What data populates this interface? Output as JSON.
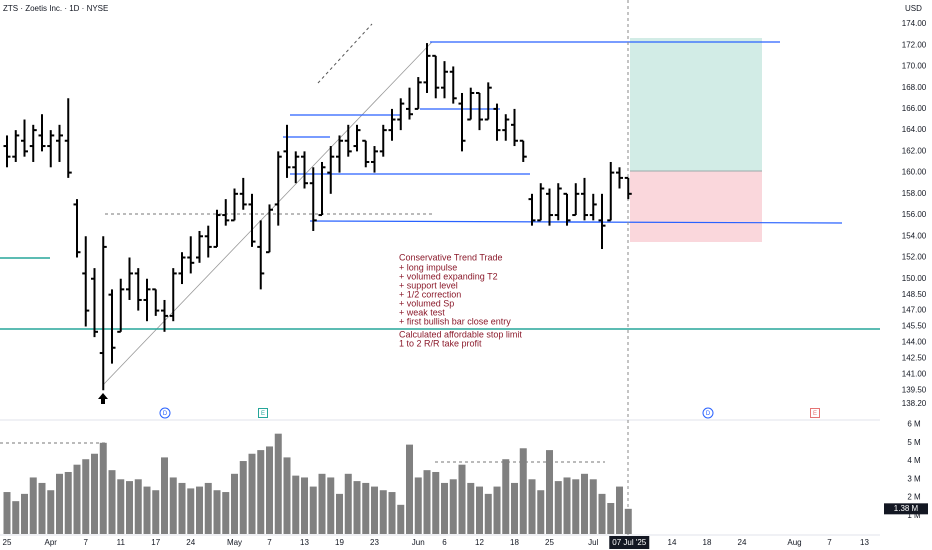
{
  "header": "ZTS · Zoetis Inc. · 1D · NYSE",
  "currency": "USD",
  "chart_data": {
    "type": "ohlc",
    "open": [
      162.5,
      161.5,
      163,
      162.5,
      163.5,
      162.5,
      163,
      163,
      157,
      150.5,
      150,
      143,
      148.5,
      145,
      149,
      150.5,
      148,
      149,
      147,
      146.5,
      150.5,
      152,
      152,
      154,
      153,
      156,
      155.5,
      158,
      157,
      153,
      152.5,
      157,
      162,
      160.5,
      161.5,
      159,
      156,
      160,
      161.5,
      163,
      162.5,
      163,
      161,
      162,
      164,
      165,
      166,
      166,
      168.5,
      171,
      168,
      169.5,
      166.5,
      165,
      167.5,
      165,
      166,
      164,
      164.5,
      163,
      157.5,
      155.5,
      158,
      156,
      158,
      156,
      158,
      156,
      155.5,
      155.5,
      160,
      159.5
    ],
    "high": [
      163.5,
      164,
      165,
      164.5,
      165.5,
      164,
      164.5,
      167,
      157.5,
      154,
      151,
      154,
      149,
      150,
      152,
      151,
      150,
      149,
      148,
      151,
      152.5,
      154,
      154.5,
      155,
      156.5,
      157.5,
      158.5,
      159.5,
      158,
      155.5,
      157,
      162,
      164.5,
      162,
      162,
      160.5,
      161,
      162.5,
      163.5,
      164.5,
      164.5,
      163,
      162.5,
      164.5,
      166,
      167,
      168,
      169,
      172.2,
      171,
      170.5,
      170,
      167.5,
      168,
      167.5,
      168.5,
      166.5,
      165.5,
      166,
      163,
      158,
      159,
      158.5,
      159,
      158,
      159,
      159.5,
      158,
      158,
      161,
      160.5,
      159.5
    ],
    "low": [
      160.5,
      161,
      161.5,
      161,
      162,
      160.5,
      161,
      159.5,
      152,
      145.5,
      144.5,
      139.5,
      142,
      145,
      148,
      147,
      146,
      146.5,
      145,
      146,
      149.5,
      150.5,
      151.5,
      152,
      153,
      155,
      155.5,
      156.5,
      153,
      149,
      152.5,
      155,
      159.5,
      159,
      158.5,
      154.5,
      156,
      158,
      160,
      161.5,
      162,
      160.5,
      160,
      161.5,
      163,
      164,
      165,
      166,
      167.5,
      167,
      167,
      166.5,
      162,
      165,
      164,
      165,
      163,
      163,
      162.5,
      161,
      155,
      155.5,
      155,
      155.5,
      155,
      156,
      155.5,
      155.5,
      152.8,
      155.5,
      158.5,
      157.5
    ],
    "close": [
      161.5,
      163.5,
      162,
      164,
      162.5,
      163.5,
      163.5,
      160,
      152.5,
      147,
      145,
      153,
      143.5,
      149,
      150.5,
      148,
      149,
      147,
      146.5,
      150.5,
      152,
      151.5,
      154,
      153,
      156,
      155.5,
      158,
      157,
      153.5,
      150.5,
      156.5,
      161.5,
      160.5,
      161.5,
      159,
      155.5,
      160.5,
      161.5,
      163,
      162,
      164,
      161,
      162,
      164,
      165,
      166.5,
      165.5,
      168.5,
      171,
      168,
      169.5,
      167,
      163,
      167.5,
      165,
      168,
      164,
      165,
      163,
      161.5,
      155.5,
      158.5,
      156,
      158.5,
      155.5,
      158,
      156,
      157,
      155,
      160,
      159.5,
      158
    ],
    "volume": [
      2.3,
      1.8,
      2.2,
      3.1,
      2.8,
      2.4,
      3.3,
      3.4,
      3.8,
      4.1,
      4.4,
      5.0,
      3.5,
      3.0,
      2.9,
      3.0,
      2.6,
      2.4,
      4.2,
      3.1,
      2.8,
      2.5,
      2.6,
      2.8,
      2.4,
      2.3,
      3.3,
      4.0,
      4.4,
      4.6,
      4.8,
      5.5,
      4.2,
      3.2,
      3.1,
      2.6,
      3.3,
      3.1,
      2.2,
      3.3,
      2.9,
      2.8,
      2.6,
      2.4,
      2.3,
      1.6,
      4.9,
      3.1,
      3.5,
      3.4,
      2.8,
      3.0,
      3.8,
      2.8,
      2.6,
      2.2,
      2.6,
      4.1,
      2.8,
      4.7,
      3.0,
      2.4,
      4.6,
      2.9,
      3.1,
      3.0,
      3.3,
      3.0,
      2.2,
      1.7,
      2.6,
      1.38
    ],
    "volume_last_label": "1.38 M",
    "bar_color": "#000000",
    "volume_color": "#808080",
    "ylim": [
      136.88,
      176.26
    ],
    "yticks": [
      {
        "value": 174,
        "label": "174.00"
      },
      {
        "value": 172,
        "label": "172.00"
      },
      {
        "value": 170,
        "label": "170.00"
      },
      {
        "value": 168,
        "label": "168.00"
      },
      {
        "value": 166,
        "label": "166.00"
      },
      {
        "value": 164,
        "label": "164.00"
      },
      {
        "value": 162,
        "label": "162.00"
      },
      {
        "value": 160,
        "label": "160.00"
      },
      {
        "value": 158,
        "label": "158.00"
      },
      {
        "value": 156,
        "label": "156.00"
      },
      {
        "value": 154,
        "label": "154.00"
      },
      {
        "value": 152,
        "label": "152.00"
      },
      {
        "value": 150,
        "label": "150.00"
      },
      {
        "value": 148.5,
        "label": "148.50"
      },
      {
        "value": 147,
        "label": "147.00"
      },
      {
        "value": 145.5,
        "label": "145.50"
      },
      {
        "value": 144,
        "label": "144.00"
      },
      {
        "value": 142.5,
        "label": "142.50"
      },
      {
        "value": 141,
        "label": "141.00"
      },
      {
        "value": 139.5,
        "label": "139.50"
      },
      {
        "value": 138.2,
        "label": "138.20"
      }
    ],
    "y2lim": [
      0,
      6.25
    ],
    "y2ticks": [
      {
        "value": 6,
        "label": "6 M"
      },
      {
        "value": 5,
        "label": "5 M"
      },
      {
        "value": 4,
        "label": "4 M"
      },
      {
        "value": 3,
        "label": "3 M"
      },
      {
        "value": 2,
        "label": "2 M"
      },
      {
        "value": 1,
        "label": "1 M"
      }
    ],
    "xlim": [
      -0.8,
      99.77
    ],
    "xticks": [
      {
        "value": 0,
        "label": "25"
      },
      {
        "value": 5,
        "label": "Apr"
      },
      {
        "value": 9,
        "label": "7"
      },
      {
        "value": 13,
        "label": "11"
      },
      {
        "value": 17,
        "label": "17"
      },
      {
        "value": 21,
        "label": "24"
      },
      {
        "value": 26,
        "label": "May"
      },
      {
        "value": 30,
        "label": "7"
      },
      {
        "value": 34,
        "label": "13"
      },
      {
        "value": 38,
        "label": "19"
      },
      {
        "value": 42,
        "label": "23"
      },
      {
        "value": 47,
        "label": "Jun"
      },
      {
        "value": 50,
        "label": "6"
      },
      {
        "value": 54,
        "label": "12"
      },
      {
        "value": 58,
        "label": "18"
      },
      {
        "value": 62,
        "label": "25"
      },
      {
        "value": 67,
        "label": "Jul"
      },
      {
        "value": 76,
        "label": "14"
      },
      {
        "value": 80,
        "label": "18"
      },
      {
        "value": 84,
        "label": "24"
      },
      {
        "value": 90,
        "label": "Aug"
      },
      {
        "value": 94,
        "label": "7"
      },
      {
        "value": 98,
        "label": "13"
      }
    ],
    "cursor": {
      "value": 71,
      "label": "07 Jul '25"
    },
    "events": [
      "D",
      "E",
      "D",
      "E"
    ],
    "annotation": [
      "Conservative Trend Trade",
      "+ long impulse",
      "+ volumed expanding T2",
      "+ support level",
      "+ 1/2 correction",
      "+ volumed Sp",
      "+ weak test",
      "+ first bullish bar close entry",
      "Calculated affordable stop limit",
      "1 to 2 R/R take profit"
    ]
  }
}
